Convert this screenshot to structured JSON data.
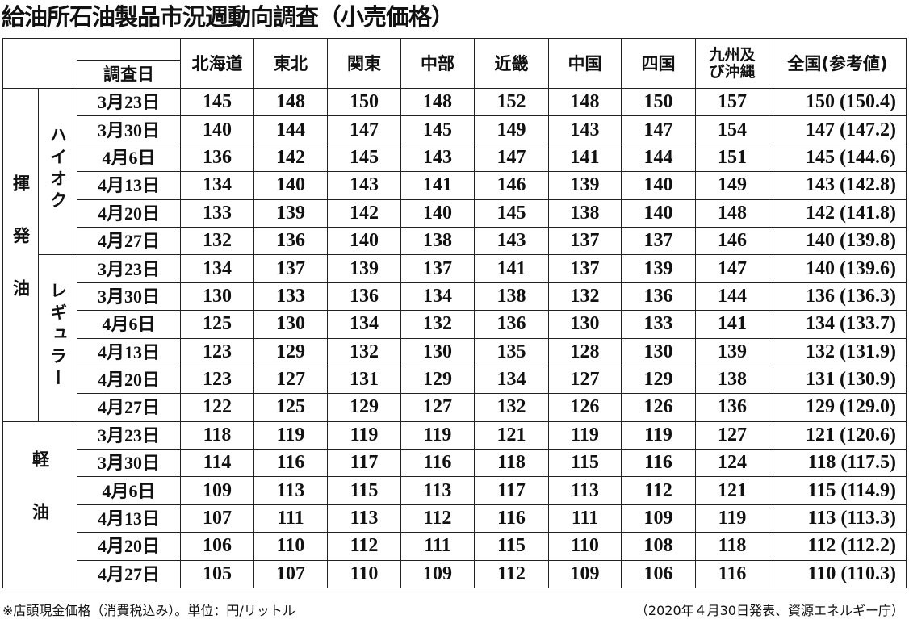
{
  "title": "給油所石油製品市況週動向調査（小売価格）",
  "header": {
    "date_label": "調査日",
    "regions": [
      "北海道",
      "東北",
      "関東",
      "中部",
      "近畿",
      "中国",
      "四国",
      "九州及\nび沖縄",
      "全国(参考値)"
    ]
  },
  "groups": [
    {
      "label": "揮発油",
      "subgroups": [
        {
          "label": "ハイオク",
          "rows": [
            {
              "date": "3月23日",
              "values": [
                "145",
                "148",
                "150",
                "148",
                "152",
                "148",
                "150",
                "157",
                "150 (150.4)"
              ]
            },
            {
              "date": "3月30日",
              "values": [
                "140",
                "144",
                "147",
                "145",
                "149",
                "143",
                "147",
                "154",
                "147 (147.2)"
              ]
            },
            {
              "date": "4月6日",
              "values": [
                "136",
                "142",
                "145",
                "143",
                "147",
                "141",
                "144",
                "151",
                "145 (144.6)"
              ]
            },
            {
              "date": "4月13日",
              "values": [
                "134",
                "140",
                "143",
                "141",
                "146",
                "139",
                "140",
                "149",
                "143 (142.8)"
              ]
            },
            {
              "date": "4月20日",
              "values": [
                "133",
                "139",
                "142",
                "140",
                "145",
                "138",
                "140",
                "148",
                "142 (141.8)"
              ]
            },
            {
              "date": "4月27日",
              "values": [
                "132",
                "136",
                "140",
                "138",
                "143",
                "137",
                "137",
                "146",
                "140 (139.8)"
              ]
            }
          ]
        },
        {
          "label": "レギュラー",
          "rows": [
            {
              "date": "3月23日",
              "values": [
                "134",
                "137",
                "139",
                "137",
                "141",
                "137",
                "139",
                "147",
                "140 (139.6)"
              ]
            },
            {
              "date": "3月30日",
              "values": [
                "130",
                "133",
                "136",
                "134",
                "138",
                "132",
                "136",
                "144",
                "136 (136.3)"
              ]
            },
            {
              "date": "4月6日",
              "values": [
                "125",
                "130",
                "134",
                "132",
                "136",
                "130",
                "133",
                "141",
                "134 (133.7)"
              ]
            },
            {
              "date": "4月13日",
              "values": [
                "123",
                "129",
                "132",
                "130",
                "135",
                "128",
                "130",
                "139",
                "132 (131.9)"
              ]
            },
            {
              "date": "4月20日",
              "values": [
                "123",
                "127",
                "131",
                "129",
                "134",
                "127",
                "129",
                "138",
                "131 (130.9)"
              ]
            },
            {
              "date": "4月27日",
              "values": [
                "122",
                "125",
                "129",
                "127",
                "132",
                "126",
                "126",
                "136",
                "129 (129.0)"
              ]
            }
          ]
        }
      ]
    },
    {
      "label": "軽油",
      "rows": [
        {
          "date": "3月23日",
          "values": [
            "118",
            "119",
            "119",
            "119",
            "121",
            "119",
            "119",
            "127",
            "121 (120.6)"
          ]
        },
        {
          "date": "3月30日",
          "values": [
            "114",
            "116",
            "117",
            "116",
            "118",
            "115",
            "116",
            "124",
            "118 (117.5)"
          ]
        },
        {
          "date": "4月6日",
          "values": [
            "109",
            "113",
            "115",
            "113",
            "117",
            "113",
            "112",
            "121",
            "115 (114.9)"
          ]
        },
        {
          "date": "4月13日",
          "values": [
            "107",
            "111",
            "113",
            "112",
            "116",
            "111",
            "109",
            "119",
            "113 (113.3)"
          ]
        },
        {
          "date": "4月20日",
          "values": [
            "106",
            "110",
            "112",
            "111",
            "115",
            "110",
            "108",
            "118",
            "112 (112.2)"
          ]
        },
        {
          "date": "4月27日",
          "values": [
            "105",
            "107",
            "110",
            "109",
            "112",
            "109",
            "106",
            "116",
            "110 (110.3)"
          ]
        }
      ]
    }
  ],
  "footer": {
    "note": "※店頭現金価格（消費税込み）。単位：円/リットル",
    "source": "（2020年４月30日発表、資源エネルギー庁）"
  }
}
